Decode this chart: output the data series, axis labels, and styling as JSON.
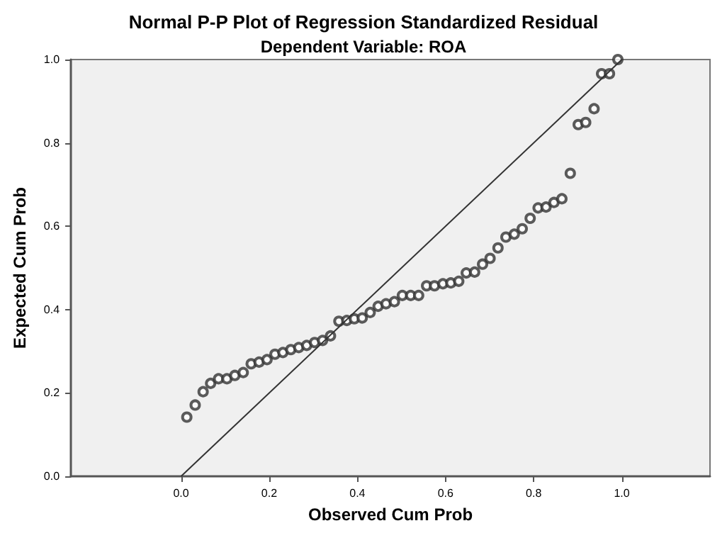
{
  "chart_data": {
    "type": "scatter",
    "title": "Normal P-P Plot of Regression Standardized Residual",
    "subtitle": "Dependent Variable: ROA",
    "xlabel": "Observed Cum Prob",
    "ylabel": "Expected Cum Prob",
    "xlim": [
      -0.25,
      1.2
    ],
    "ylim": [
      0,
      1
    ],
    "xticks": [
      {
        "value": 0,
        "label": "0.0"
      },
      {
        "value": 0.2,
        "label": "0.2"
      },
      {
        "value": 0.4,
        "label": "0.4"
      },
      {
        "value": 0.6,
        "label": "0.6"
      },
      {
        "value": 0.8,
        "label": "0.8"
      },
      {
        "value": 1,
        "label": "1.0"
      }
    ],
    "yticks": [
      {
        "value": 0,
        "label": "0.0"
      },
      {
        "value": 0.2,
        "label": "0.2"
      },
      {
        "value": 0.4,
        "label": "0.4"
      },
      {
        "value": 0.6,
        "label": "0.6"
      },
      {
        "value": 0.8,
        "label": "0.8"
      },
      {
        "value": 1,
        "label": "1.0"
      }
    ],
    "grid": false,
    "series": [
      {
        "marker": "circle",
        "color": "#333333",
        "x": [
          0.013,
          0.032,
          0.05,
          0.067,
          0.085,
          0.104,
          0.122,
          0.141,
          0.159,
          0.177,
          0.195,
          0.213,
          0.231,
          0.249,
          0.267,
          0.285,
          0.303,
          0.321,
          0.339,
          0.358,
          0.376,
          0.393,
          0.411,
          0.429,
          0.447,
          0.465,
          0.484,
          0.502,
          0.521,
          0.539,
          0.557,
          0.575,
          0.594,
          0.612,
          0.63,
          0.647,
          0.666,
          0.684,
          0.701,
          0.719,
          0.737,
          0.756,
          0.774,
          0.792,
          0.81,
          0.828,
          0.846,
          0.864,
          0.883,
          0.901,
          0.918,
          0.937,
          0.954,
          0.972,
          0.991
        ],
        "values": [
          0.142,
          0.171,
          0.203,
          0.223,
          0.234,
          0.234,
          0.242,
          0.249,
          0.27,
          0.274,
          0.28,
          0.293,
          0.297,
          0.304,
          0.309,
          0.314,
          0.321,
          0.326,
          0.337,
          0.372,
          0.374,
          0.378,
          0.38,
          0.393,
          0.408,
          0.414,
          0.419,
          0.434,
          0.434,
          0.434,
          0.457,
          0.457,
          0.462,
          0.464,
          0.468,
          0.488,
          0.49,
          0.509,
          0.523,
          0.548,
          0.574,
          0.581,
          0.594,
          0.619,
          0.644,
          0.646,
          0.657,
          0.666,
          0.727,
          0.844,
          0.849,
          0.882,
          0.966,
          0.966,
          1.0
        ]
      },
      {
        "type": "line",
        "marker": "none",
        "color": "#333333",
        "x": [
          0,
          1
        ],
        "values": [
          0,
          1
        ]
      }
    ]
  }
}
